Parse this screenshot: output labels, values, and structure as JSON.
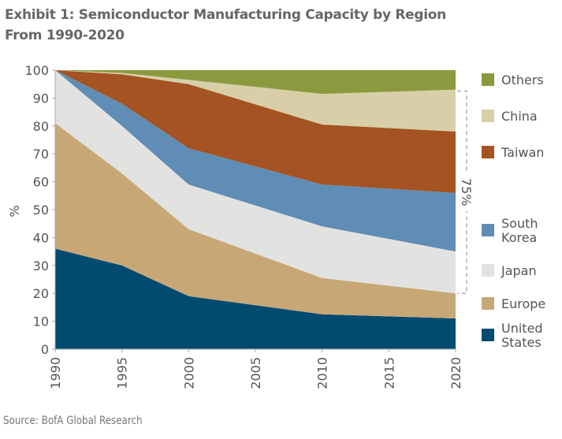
{
  "title_line1": "Exhibit 1: Semiconductor Manufacturing Capacity by Region",
  "title_line2": "From 1990-2020",
  "source": "Source: BofA Global Research",
  "chart_data": {
    "type": "area",
    "stacked": true,
    "title": "Exhibit 1: Semiconductor Manufacturing Capacity by Region From 1990-2020",
    "xlabel": "",
    "ylabel": "%",
    "x": [
      1990,
      1995,
      2000,
      2010,
      2020
    ],
    "xticks": [
      "1990",
      "1995",
      "2000",
      "2005",
      "2010",
      "2015",
      "2020"
    ],
    "xlim": [
      1990,
      2020
    ],
    "ylim": [
      0,
      100
    ],
    "yticks": [
      "0",
      "10",
      "20",
      "30",
      "40",
      "50",
      "60",
      "70",
      "80",
      "90",
      "100"
    ],
    "grid": false,
    "legend_placement": "right",
    "series": [
      {
        "name": "United States",
        "color": "#024b70",
        "values": [
          36,
          30,
          19,
          12.5,
          11
        ]
      },
      {
        "name": "Europe",
        "color": "#c8a776",
        "values": [
          45,
          33,
          24,
          13,
          9
        ]
      },
      {
        "name": "Japan",
        "color": "#e2e2e0",
        "values": [
          19,
          17,
          16,
          18.5,
          15
        ]
      },
      {
        "name": "South Korea",
        "color": "#5f8db5",
        "values": [
          0,
          8,
          13,
          15,
          21
        ]
      },
      {
        "name": "Taiwan",
        "color": "#a55322",
        "values": [
          0,
          10.5,
          23,
          21.5,
          22
        ]
      },
      {
        "name": "China",
        "color": "#d8cfa8",
        "values": [
          0,
          0.5,
          1.5,
          11,
          15
        ]
      },
      {
        "name": "Others",
        "color": "#8c9a3f",
        "values": [
          0,
          1,
          3.5,
          8.5,
          7
        ]
      }
    ],
    "legend": [
      {
        "label_lines": [
          "Others"
        ],
        "color": "#8c9a3f"
      },
      {
        "label_lines": [
          "China"
        ],
        "color": "#d8cfa8"
      },
      {
        "label_lines": [
          "Taiwan"
        ],
        "color": "#a55322"
      },
      {
        "label_lines": [
          "South",
          "Korea"
        ],
        "color": "#5f8db5"
      },
      {
        "label_lines": [
          "Japan"
        ],
        "color": "#e2e2e0"
      },
      {
        "label_lines": [
          "Europe"
        ],
        "color": "#c8a776"
      },
      {
        "label_lines": [
          "United",
          "States"
        ],
        "color": "#024b70"
      }
    ],
    "annotation": {
      "text": "75%",
      "range": [
        20,
        92.6
      ]
    }
  }
}
